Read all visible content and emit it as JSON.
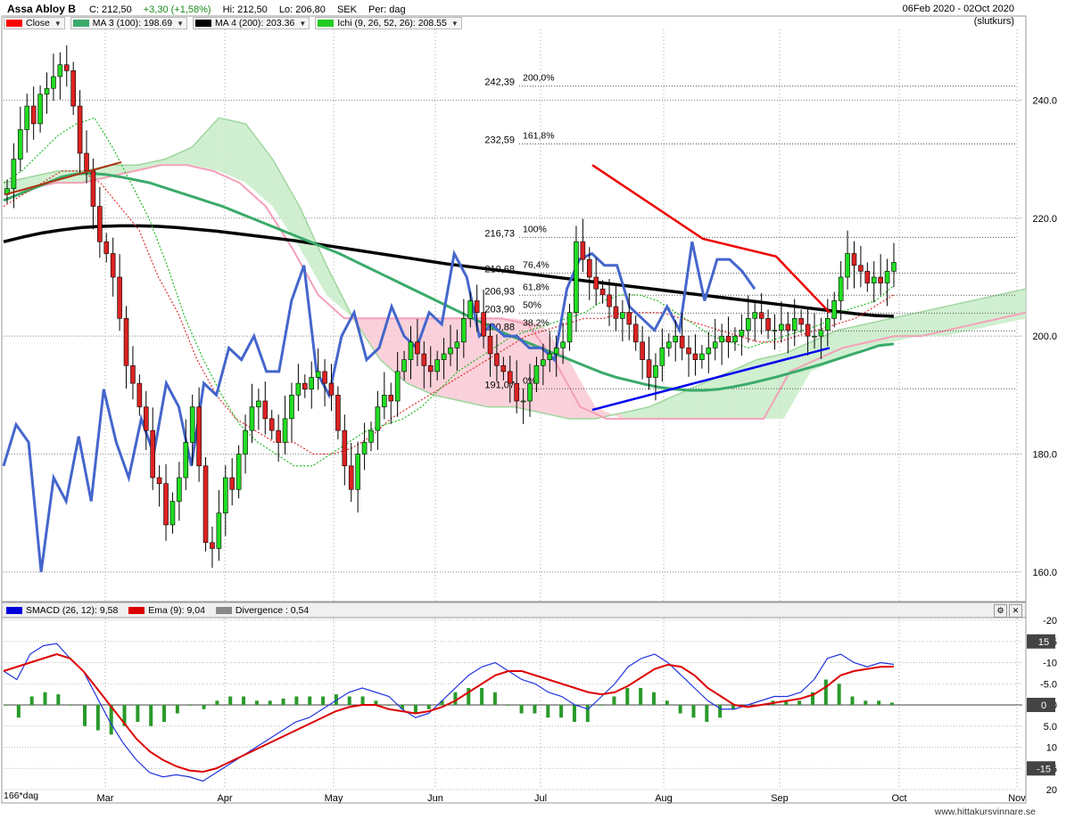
{
  "header": {
    "ticker": "Assa Abloy B",
    "close": "C: 212,50",
    "change": "+3,30 (+1,58%)",
    "high": "Hi: 212,50",
    "low": "Lo: 206,80",
    "currency": "SEK",
    "period": "Per: dag",
    "range": "06Feb 2020 - 02Oct 2020",
    "note": "(slutkurs)"
  },
  "legend": [
    {
      "label": "Close",
      "color": "#ff0000"
    },
    {
      "label": "MA 3 (100): 198.69",
      "color": "#3aaa6a"
    },
    {
      "label": "MA 4 (200): 203.36",
      "color": "#000000"
    },
    {
      "label": "Ichi (9, 26, 52, 26): 208.55",
      "color": "#22cc22"
    }
  ],
  "legend2": [
    {
      "label": "SMACD (26, 12): 9,58",
      "color": "#0000dd"
    },
    {
      "label": "Ema (9): 9,04",
      "color": "#dd0000"
    },
    {
      "label": "Divergence : 0,54",
      "color": "#888888"
    }
  ],
  "footer": "www.hittakursvinnare.se",
  "day_label": "166*dag",
  "chart_data": [
    {
      "type": "candlestick",
      "title": "Assa Abloy B",
      "ylim": [
        155,
        252
      ],
      "y_ticks": [
        160,
        180,
        200,
        220,
        240
      ],
      "y_tick_labels": [
        "160.0",
        "180.0",
        "200.0",
        "220.0",
        "240.0"
      ],
      "x_ticks": [
        "Mar",
        "Apr",
        "May",
        "Jun",
        "Jul",
        "Aug",
        "Sep",
        "Oct",
        "Nov"
      ],
      "close": [
        225,
        230,
        235,
        239,
        236,
        241,
        242,
        244,
        246,
        245,
        239,
        231,
        228,
        222,
        216,
        214,
        210,
        203,
        195,
        192,
        188,
        184,
        176,
        175,
        168,
        172,
        176,
        182,
        188,
        178,
        165,
        164,
        170,
        176,
        174,
        180,
        184,
        188,
        189,
        186,
        184,
        182,
        186,
        190,
        192,
        191,
        193,
        194,
        192,
        190,
        184,
        178,
        174,
        180,
        182,
        184,
        188,
        190,
        189,
        194,
        196,
        199,
        197,
        195,
        194,
        196,
        197,
        198,
        199,
        203,
        206,
        204,
        200,
        197,
        195,
        194,
        192,
        189,
        189,
        192,
        195,
        196,
        197,
        198,
        199,
        204,
        216,
        213,
        210,
        208,
        207,
        205,
        203,
        204,
        202,
        199,
        196,
        193,
        195,
        198,
        199,
        200,
        198,
        197,
        196,
        197,
        198,
        199,
        200,
        199,
        200,
        201,
        203,
        204,
        203,
        201,
        201,
        202,
        201,
        203,
        202,
        200,
        200,
        201,
        203,
        206,
        210,
        214,
        212,
        211,
        209,
        210,
        209,
        211,
        212.5
      ],
      "fib_levels": [
        {
          "value": 242.39,
          "label": "200,0%"
        },
        {
          "value": 232.59,
          "label": "161,8%"
        },
        {
          "value": 216.73,
          "label": "100%"
        },
        {
          "value": 210.68,
          "label": "76,4%"
        },
        {
          "value": 206.93,
          "label": "61,8%"
        },
        {
          "value": 203.9,
          "label": "50%"
        },
        {
          "value": 200.88,
          "label": "38,2%"
        },
        {
          "value": 191.07,
          "label": "0%"
        }
      ],
      "ma100": [
        223,
        224,
        225,
        226,
        227,
        227.5,
        227.6,
        227.4,
        227,
        226.5,
        226,
        225.2,
        224.4,
        223.6,
        222.8,
        222,
        221,
        220,
        219,
        218,
        217,
        216,
        215,
        214,
        212.8,
        211.6,
        210.4,
        209.2,
        208,
        206.8,
        205.6,
        204.4,
        203.2,
        202,
        200.8,
        199.8,
        198.8,
        197.8,
        196.8,
        195.8,
        194.8,
        193.8,
        193,
        192.4,
        191.8,
        191.3,
        191,
        190.8,
        190.8,
        191,
        191.4,
        191.9,
        192.5,
        193.1,
        193.8,
        194.5,
        195.2,
        196,
        196.8,
        197.6,
        198.4,
        198.69
      ],
      "ma200": [
        216,
        216.8,
        217.5,
        218,
        218.4,
        218.6,
        218.7,
        218.7,
        218.6,
        218.4,
        218.1,
        217.8,
        217.4,
        217,
        216.6,
        216.2,
        215.7,
        215.2,
        214.7,
        214.2,
        213.7,
        213.2,
        212.7,
        212.2,
        211.8,
        211.4,
        211,
        210.6,
        210.2,
        209.8,
        209.4,
        209,
        208.6,
        208.2,
        207.8,
        207.4,
        207,
        206.6,
        206.2,
        205.8,
        205.4,
        205,
        204.6,
        204.2,
        203.8,
        203.5,
        203.36
      ],
      "ichi_tenkan": [
        226,
        228,
        231,
        234,
        236,
        237,
        232,
        226,
        220,
        212,
        203,
        196,
        190,
        185,
        182,
        180,
        178,
        178,
        180,
        182,
        184,
        185,
        186,
        188,
        191,
        194,
        196,
        198,
        200,
        201,
        202,
        203,
        204,
        206,
        207,
        207,
        206,
        204,
        202,
        200,
        199,
        198,
        199,
        200,
        201,
        202,
        204,
        205,
        206,
        208.55
      ],
      "ichi_kijun": [
        222,
        224,
        226,
        228,
        228,
        226,
        222,
        218,
        210,
        204,
        196,
        190,
        186,
        184,
        182,
        182,
        180,
        180,
        181,
        183,
        186,
        188,
        190,
        192,
        194,
        196,
        198,
        200,
        201,
        202,
        203,
        203,
        204,
        204,
        204,
        203,
        202,
        201,
        200,
        199,
        199,
        200,
        201,
        202,
        203,
        205,
        207
      ],
      "ichi_span_a": [
        226,
        227,
        228,
        228,
        229,
        229,
        230,
        232,
        237,
        236,
        230,
        222,
        212,
        203,
        196,
        192,
        190,
        189,
        188,
        188,
        187,
        186,
        186,
        187,
        188,
        190,
        192,
        194,
        196,
        197,
        199,
        201,
        202,
        203,
        204,
        205,
        206,
        207,
        208
      ],
      "ichi_span_b": [
        224,
        225,
        226,
        226,
        227,
        228,
        229,
        229,
        228,
        226,
        222,
        215,
        207,
        203,
        203,
        203,
        203,
        203,
        203,
        203,
        202,
        196,
        188,
        186,
        186,
        186,
        186,
        186,
        186,
        186,
        194,
        196,
        198,
        199,
        200,
        200,
        201,
        202,
        203,
        204
      ],
      "blue_line": [
        178,
        185,
        182,
        160,
        176,
        172,
        183,
        172,
        191,
        182,
        176,
        186,
        180,
        192,
        188,
        178,
        192,
        190,
        198,
        196,
        200,
        194,
        194,
        206,
        212,
        194,
        190,
        200,
        204,
        196,
        198,
        205,
        200,
        198,
        204,
        202,
        214,
        210,
        200,
        202,
        200,
        200,
        198,
        198,
        196,
        208,
        213,
        214,
        212,
        212,
        205,
        203,
        201,
        205,
        201,
        216,
        206,
        213,
        213,
        211,
        208
      ],
      "trend_red": [
        [
          0,
          229
        ],
        [
          1,
          216.5
        ],
        [
          2,
          213.5
        ],
        [
          3,
          204
        ]
      ],
      "trend_blue": [
        [
          0,
          187.5
        ],
        [
          1,
          198
        ]
      ],
      "trend_brown": [
        [
          0,
          224
        ],
        [
          1,
          229.5
        ]
      ]
    },
    {
      "type": "macd",
      "ylim": [
        -20,
        20
      ],
      "y_ticks": [
        -20,
        -15,
        -10,
        -5,
        0,
        5,
        10,
        15,
        20
      ],
      "y_tick_labels": [
        "20",
        "15",
        "10",
        "5.0",
        "0",
        "-5.0",
        "-10",
        "-15",
        "-20"
      ],
      "smacd": [
        8,
        6,
        12,
        14,
        14.5,
        11,
        8,
        2,
        -4,
        -9,
        -13,
        -16,
        -17,
        -16.5,
        -17,
        -18,
        -16,
        -14,
        -12,
        -10,
        -8,
        -6,
        -4,
        -3,
        -1,
        1,
        3,
        4,
        3,
        2,
        -1,
        -3,
        -2,
        1,
        4,
        7,
        9,
        10,
        8,
        6,
        5,
        3,
        2,
        0,
        -1,
        2,
        5,
        9,
        11,
        12,
        10,
        7,
        4,
        1,
        -1,
        -1,
        0,
        1,
        2,
        2,
        3,
        6,
        11,
        12,
        10,
        9,
        10,
        9.58
      ],
      "ema": [
        8,
        9,
        10,
        11,
        12,
        11,
        8,
        4,
        0,
        -4,
        -8,
        -11,
        -13,
        -14.5,
        -15.5,
        -15.8,
        -15,
        -13.5,
        -12,
        -10.5,
        -9,
        -7.5,
        -6,
        -4.5,
        -3,
        -1.5,
        -0.5,
        0,
        0,
        -1,
        -1.5,
        -2,
        -1.5,
        -0.5,
        1,
        3,
        5,
        7,
        8,
        8,
        7,
        6,
        5,
        4,
        3,
        2.5,
        3,
        4.5,
        6.5,
        8.5,
        9.5,
        9,
        7,
        4,
        2,
        0,
        -0.5,
        0,
        0.5,
        1,
        1.5,
        2.5,
        4.5,
        7,
        8,
        8.5,
        9,
        9.04
      ],
      "divergence": [
        0,
        -3,
        2,
        3,
        2.5,
        0,
        -5,
        -6,
        -7,
        -5,
        -4,
        -5,
        -4,
        -2,
        0,
        -1,
        1,
        2,
        2,
        1,
        1,
        1.5,
        2,
        2,
        2,
        2.5,
        2,
        2,
        1,
        0,
        -1,
        -2,
        -1,
        1,
        3,
        4,
        4,
        3,
        0,
        -2,
        -2,
        -3,
        -3,
        -4,
        -4,
        0,
        2,
        4,
        4,
        3,
        1,
        -2,
        -3,
        -4,
        -3,
        -1,
        0,
        0,
        1,
        1,
        1,
        3,
        6,
        5,
        2,
        1,
        1,
        0.54
      ]
    }
  ]
}
